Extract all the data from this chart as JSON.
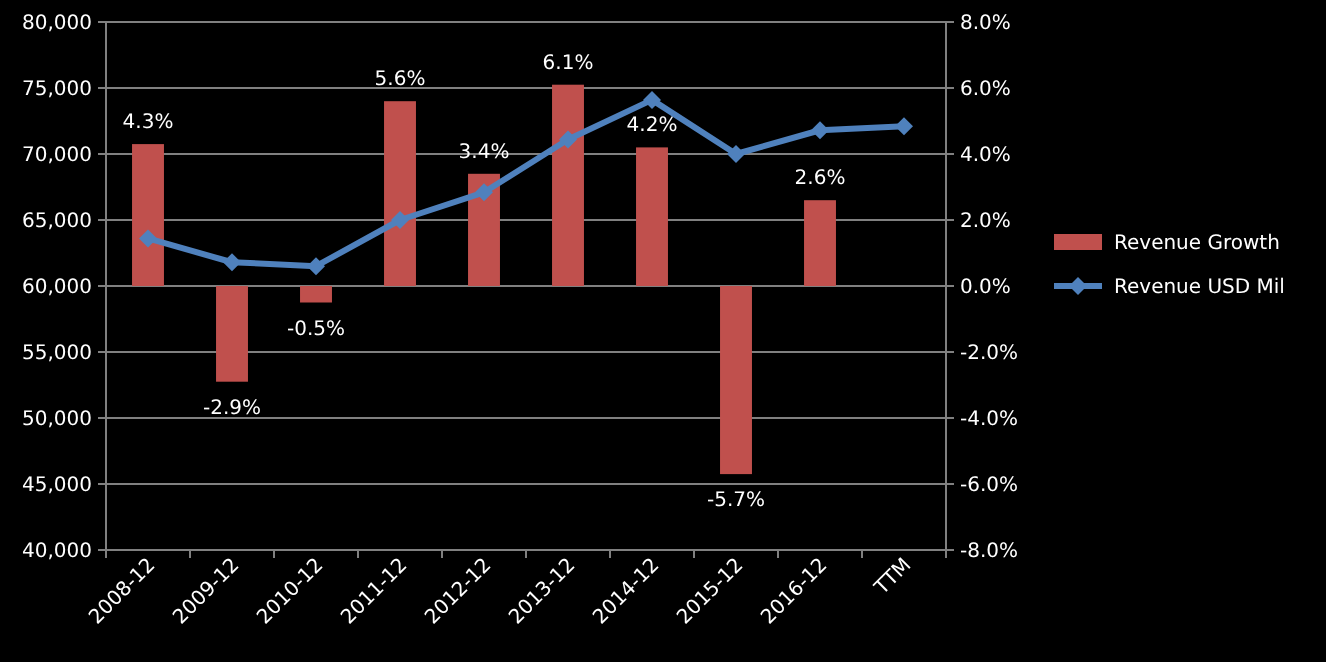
{
  "chart_data": {
    "type": "bar",
    "categories": [
      "2008-12",
      "2009-12",
      "2010-12",
      "2011-12",
      "2012-12",
      "2013-12",
      "2014-12",
      "2015-12",
      "2016-12",
      "TTM"
    ],
    "series": [
      {
        "name": "Revenue Growth",
        "axis": "y2",
        "color": "#c0504d",
        "values": [
          4.3,
          -2.9,
          -0.5,
          5.6,
          3.4,
          6.1,
          4.2,
          -5.7,
          2.6,
          null
        ],
        "value_labels": [
          "4.3%",
          "-2.9%",
          "-0.5%",
          "5.6%",
          "3.4%",
          "6.1%",
          "4.2%",
          "-5.7%",
          "2.6%",
          null
        ]
      },
      {
        "name": "Revenue USD Mil",
        "type": "line",
        "axis": "y",
        "color": "#4f81bd",
        "values": [
          63600,
          61800,
          61500,
          65000,
          67100,
          71100,
          74100,
          70000,
          71800,
          72100
        ]
      }
    ],
    "ylim": [
      40000,
      80000
    ],
    "yticks": [
      {
        "value": 40000,
        "label": "40,000"
      },
      {
        "value": 45000,
        "label": "45,000"
      },
      {
        "value": 50000,
        "label": "50,000"
      },
      {
        "value": 55000,
        "label": "55,000"
      },
      {
        "value": 60000,
        "label": "60,000"
      },
      {
        "value": 65000,
        "label": "65,000"
      },
      {
        "value": 70000,
        "label": "70,000"
      },
      {
        "value": 75000,
        "label": "75,000"
      },
      {
        "value": 80000,
        "label": "80,000"
      }
    ],
    "y2lim": [
      -8,
      8
    ],
    "y2ticks": [
      {
        "value": -8,
        "label": "-8.0%"
      },
      {
        "value": -6,
        "label": "-6.0%"
      },
      {
        "value": -4,
        "label": "-4.0%"
      },
      {
        "value": -2,
        "label": "-2.0%"
      },
      {
        "value": 0,
        "label": "0.0%"
      },
      {
        "value": 2,
        "label": "2.0%"
      },
      {
        "value": 4,
        "label": "4.0%"
      },
      {
        "value": 6,
        "label": "6.0%"
      },
      {
        "value": 8,
        "label": "8.0%"
      }
    ],
    "grid": "y",
    "legend": "right",
    "marker": "diamond",
    "line_style": "solid"
  }
}
